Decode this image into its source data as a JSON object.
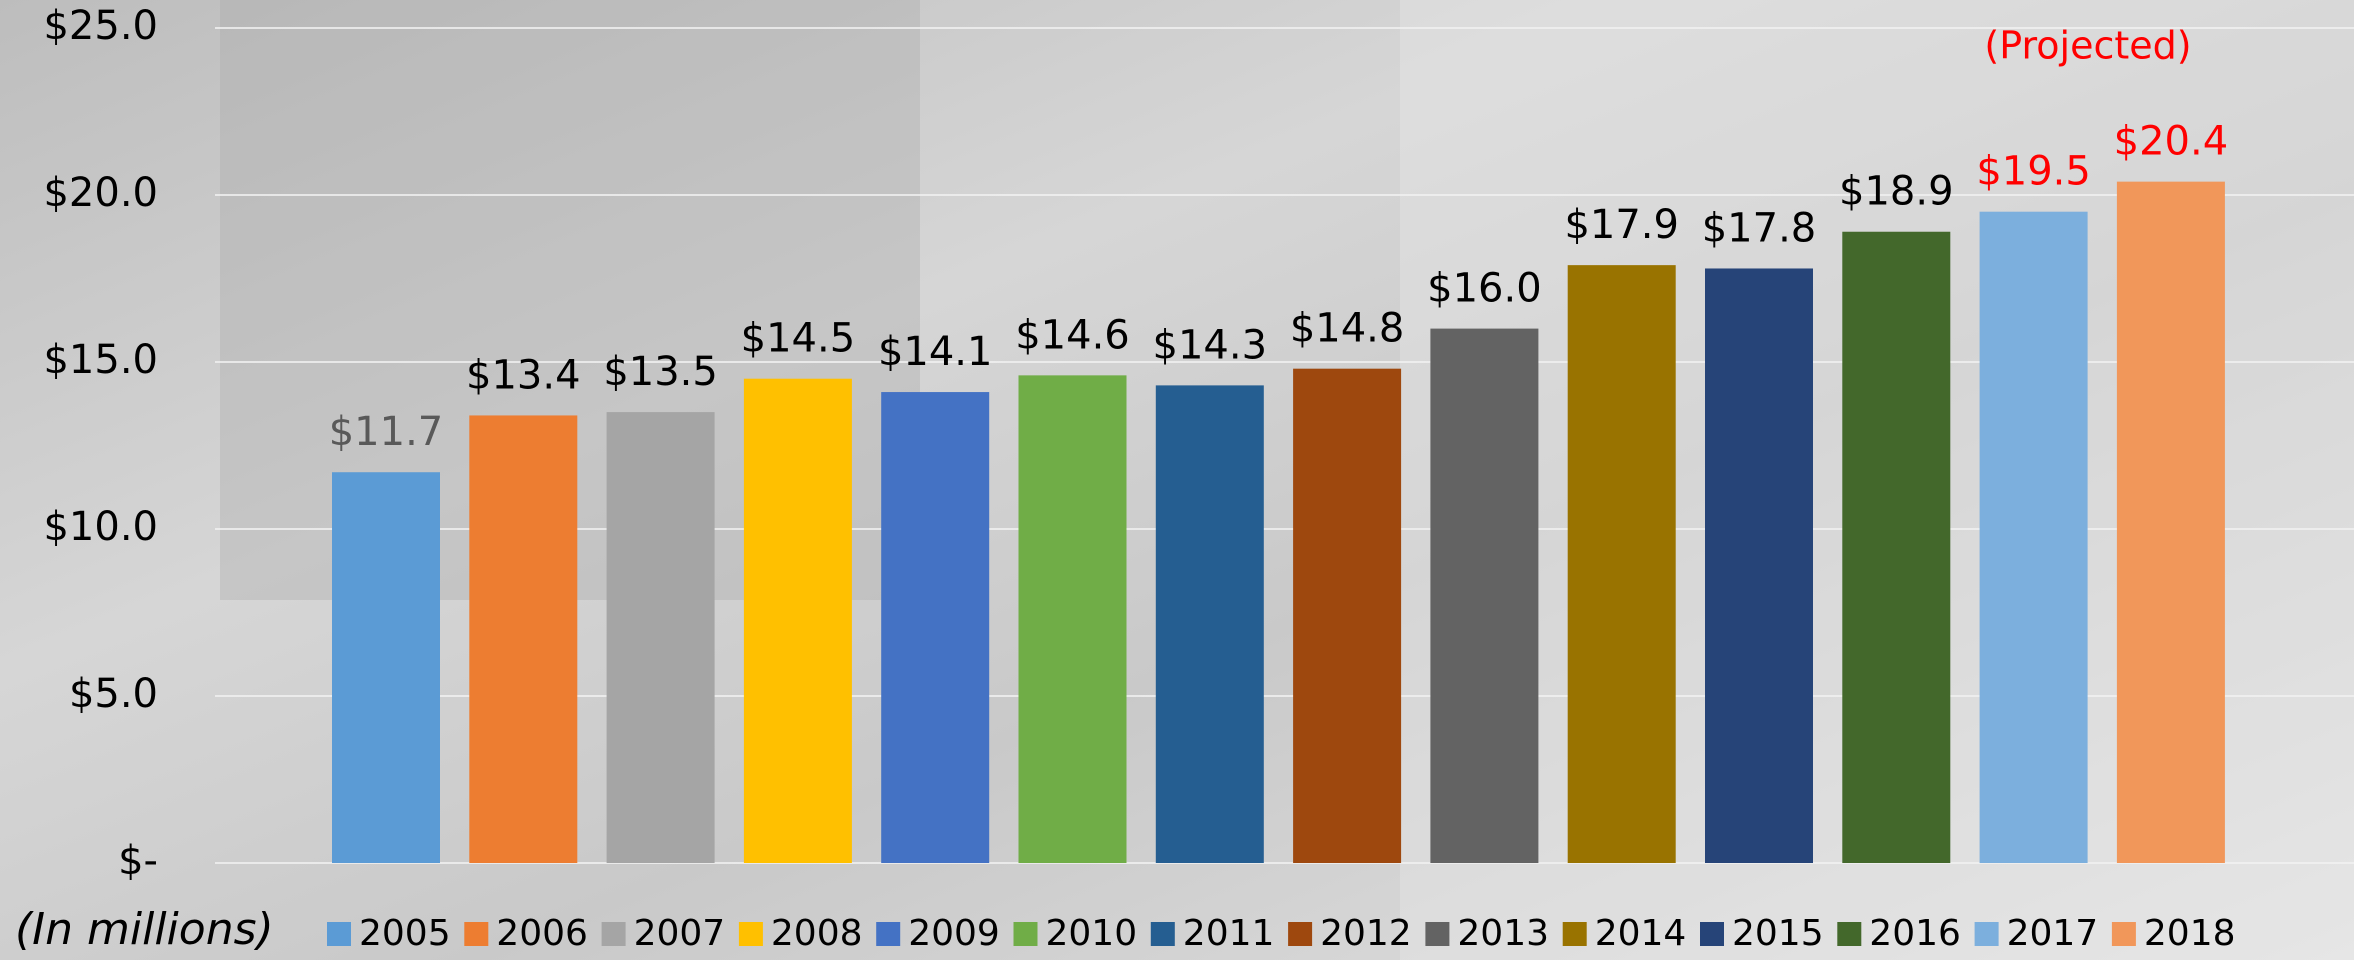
{
  "chart_data": {
    "type": "bar",
    "annotation": "(Projected)",
    "annotation_color": "#ff0000",
    "y_label": "(In millions)",
    "categories": [
      "2005",
      "2006",
      "2007",
      "2008",
      "2009",
      "2010",
      "2011",
      "2012",
      "2013",
      "2014",
      "2015",
      "2016",
      "2017",
      "2018"
    ],
    "values": [
      11.7,
      13.4,
      13.5,
      14.5,
      14.1,
      14.6,
      14.3,
      14.8,
      16.0,
      17.9,
      17.8,
      18.9,
      19.5,
      20.4
    ],
    "value_labels": [
      "$11.7",
      "$13.4",
      "$13.5",
      "$14.5",
      "$14.1",
      "$14.6",
      "$14.3",
      "$14.8",
      "$16.0",
      "$17.9",
      "$17.8",
      "$18.9",
      "$19.5",
      "$20.4"
    ],
    "colors": [
      "#5b9bd5",
      "#ed7d31",
      "#a5a5a5",
      "#ffc000",
      "#4472c4",
      "#70ad47",
      "#255e91",
      "#9e480e",
      "#636363",
      "#997300",
      "#264478",
      "#43682b",
      "#7cafdd",
      "#f1975a"
    ],
    "value_label_colors": [
      "#595959",
      "#000000",
      "#000000",
      "#000000",
      "#000000",
      "#000000",
      "#000000",
      "#000000",
      "#000000",
      "#000000",
      "#000000",
      "#000000",
      "#ff0000",
      "#ff0000"
    ],
    "ylim": [
      0,
      25
    ],
    "yticks": [
      {
        "value": 0,
        "label": "$-"
      },
      {
        "value": 5,
        "label": "$5.0"
      },
      {
        "value": 10,
        "label": "$10.0"
      },
      {
        "value": 15,
        "label": "$15.0"
      },
      {
        "value": 20,
        "label": "$20.0"
      },
      {
        "value": 25,
        "label": "$25.0"
      }
    ],
    "grid": true,
    "legend": "bottom"
  }
}
